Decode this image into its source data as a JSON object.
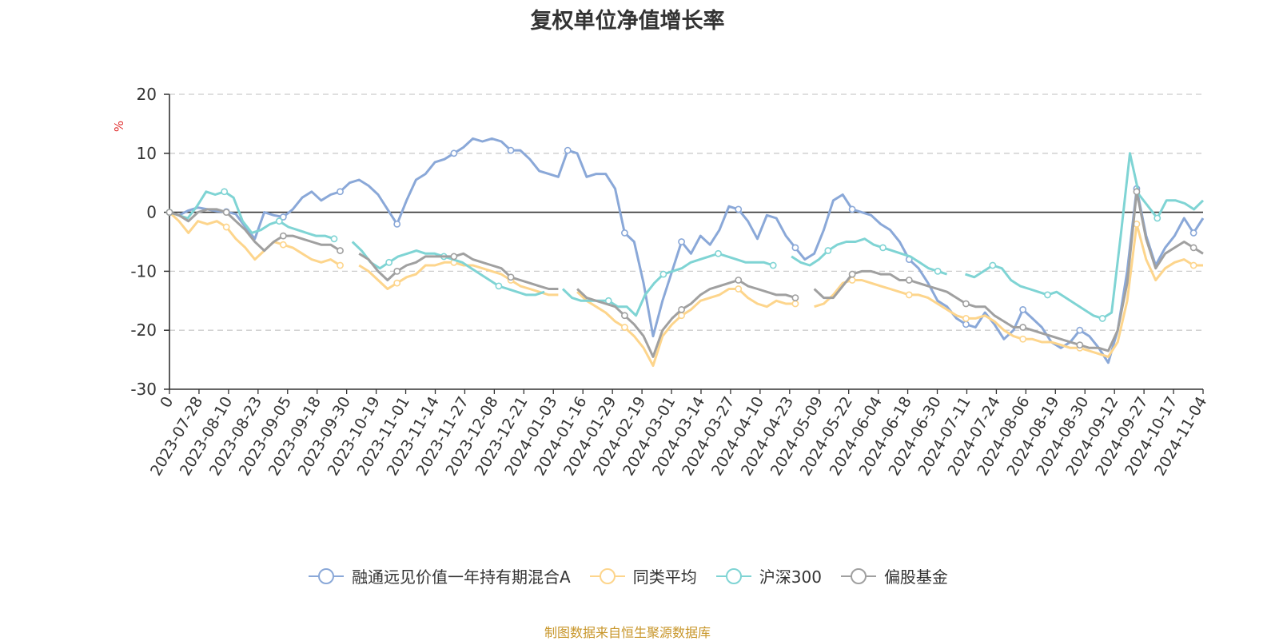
{
  "chart_data": {
    "type": "line",
    "title": "复权单位净值增长率",
    "ylabel": "%",
    "ylim": [
      -30,
      20
    ],
    "yticks": [
      20,
      10,
      0,
      -10,
      -20,
      -30
    ],
    "x_tick_labels": [
      "0",
      "2023-07-28",
      "2023-08-10",
      "2023-08-23",
      "2023-09-05",
      "2023-09-18",
      "2023-09-30",
      "2023-10-19",
      "2023-11-01",
      "2023-11-14",
      "2023-11-27",
      "2023-12-08",
      "2023-12-21",
      "2024-01-03",
      "2024-01-16",
      "2024-01-29",
      "2024-02-19",
      "2024-03-01",
      "2024-03-14",
      "2024-03-27",
      "2024-04-10",
      "2024-04-23",
      "2024-05-09",
      "2024-05-22",
      "2024-06-04",
      "2024-06-18",
      "2024-06-30",
      "2024-07-11",
      "2024-07-24",
      "2024-08-06",
      "2024-08-19",
      "2024-08-30",
      "2024-09-12",
      "2024-09-27",
      "2024-10-17",
      "2024-11-04"
    ],
    "grid": true,
    "legend_position": "bottom",
    "series": [
      {
        "name": "融通远见价值一年持有期混合A",
        "color": "#8aa8d8",
        "values": [
          0,
          -0.5,
          0.3,
          0.8,
          0.5,
          0.2,
          0.1,
          -0.3,
          -2.5,
          -4.5,
          0,
          -0.5,
          -0.8,
          0.5,
          2.5,
          3.5,
          2.0,
          3.0,
          3.5,
          5.0,
          5.5,
          4.5,
          3.0,
          0.5,
          -2.0,
          2.0,
          5.5,
          6.5,
          8.5,
          9.0,
          10.0,
          11.0,
          12.5,
          12.0,
          12.5,
          12.0,
          10.5,
          10.5,
          9.0,
          7.0,
          6.5,
          6.0,
          10.5,
          10.0,
          6.0,
          6.5,
          6.5,
          4.0,
          -3.5,
          -5.0,
          -12.0,
          -21.0,
          -15.0,
          -10.0,
          -5.0,
          -7.0,
          -4.0,
          -5.5,
          -3.0,
          1.0,
          0.5,
          -1.5,
          -4.5,
          -0.5,
          -1.0,
          -4.0,
          -6.0,
          -8.0,
          -7.0,
          -3.0,
          2.0,
          3.0,
          0.5,
          0,
          -0.5,
          -2.0,
          -3.0,
          -5.0,
          -8.0,
          -9.5,
          -12.0,
          -15.0,
          -16.0,
          -18.0,
          -19.0,
          -19.5,
          -17.0,
          -19.0,
          -21.5,
          -20.0,
          -16.5,
          -18.0,
          -19.5,
          -22.0,
          -23.0,
          -22.0,
          -20.0,
          -21.0,
          -23.0,
          -25.5,
          -20.0,
          -10.0,
          4.0,
          -4.0,
          -9.0,
          -6.0,
          -4.0,
          -1.0,
          -3.5,
          -1.0
        ]
      },
      {
        "name": "同类平均",
        "color": "#fdd58c",
        "values": [
          0,
          -1.5,
          -3.5,
          -1.5,
          -2.0,
          -1.5,
          -2.5,
          -4.5,
          -6.0,
          -8.0,
          -6.5,
          -5.0,
          -5.5,
          -6.0,
          -7.0,
          -8.0,
          -8.5,
          -8.0,
          -9.0,
          null,
          -9.0,
          -10.0,
          -11.5,
          -13.0,
          -12.0,
          -11.0,
          -10.5,
          -9.0,
          -9.0,
          -8.5,
          -8.5,
          -9.0,
          -9.0,
          -9.5,
          -10.0,
          -10.5,
          -11.5,
          -12.5,
          -13.0,
          -13.5,
          -14.0,
          -14.0,
          null,
          -13.5,
          -15.0,
          -16.0,
          -17.0,
          -18.5,
          -19.5,
          -21.0,
          -23.0,
          -26.0,
          -21.0,
          -19.0,
          -17.5,
          -16.5,
          -15.0,
          -14.5,
          -14.0,
          -13.0,
          -13.0,
          -14.5,
          -15.5,
          -16.0,
          -15.0,
          -15.5,
          -15.5,
          null,
          -16.0,
          -15.5,
          -14.0,
          -12.0,
          -11.5,
          -11.5,
          -12.0,
          -12.5,
          -13.0,
          -13.5,
          -14.0,
          -14.0,
          -14.5,
          -15.5,
          -16.5,
          -17.5,
          -18.0,
          -18.0,
          -17.5,
          -18.5,
          -20.0,
          -21.0,
          -21.5,
          -21.5,
          -22.0,
          -22.0,
          -22.5,
          -23.0,
          -23.0,
          -23.5,
          -24.0,
          -24.5,
          -22.0,
          -15.0,
          -2.0,
          -8.0,
          -11.5,
          -9.5,
          -8.5,
          -8.0,
          -9.0,
          -9.0
        ]
      },
      {
        "name": "沪深300",
        "color": "#7fd4d4",
        "values": [
          0,
          -0.5,
          -1.0,
          1.0,
          3.5,
          3.0,
          3.5,
          2.5,
          -1.5,
          -3.5,
          -3.0,
          -2.0,
          -1.5,
          -2.5,
          -3.0,
          -3.5,
          -4.0,
          -4.0,
          -4.5,
          null,
          -5.0,
          -6.5,
          -8.5,
          -9.5,
          -8.5,
          -7.5,
          -7.0,
          -6.5,
          -7.0,
          -7.0,
          -7.5,
          -8.0,
          -8.5,
          -9.5,
          -10.5,
          -11.5,
          -12.5,
          -13.0,
          -13.5,
          -14.0,
          -14.0,
          -13.5,
          null,
          -13.0,
          -14.5,
          -15.0,
          -15.0,
          -15.0,
          -15.0,
          -16.0,
          -16.0,
          -17.5,
          -14.0,
          -12.0,
          -10.5,
          -10.0,
          -9.5,
          -8.5,
          -8.0,
          -7.5,
          -7.0,
          -7.5,
          -8.0,
          -8.5,
          -8.5,
          -8.5,
          -9.0,
          null,
          -7.5,
          -8.5,
          -9.0,
          -8.0,
          -6.5,
          -5.5,
          -5.0,
          -5.0,
          -4.5,
          -5.5,
          -6.0,
          -6.5,
          -7.0,
          -7.5,
          -8.5,
          -9.5,
          -10.0,
          -10.5,
          null,
          -10.5,
          -11.0,
          -10.0,
          -9.0,
          -9.5,
          -11.5,
          -12.5,
          -13.0,
          -13.5,
          -14.0,
          -13.5,
          -14.5,
          -15.5,
          -16.5,
          -17.5,
          -18.0,
          -17.0,
          -4.0,
          10.0,
          3.0,
          1.0,
          -1.0,
          2.0,
          2.0,
          1.5,
          0.5,
          2.0
        ]
      },
      {
        "name": "偏股基金",
        "color": "#a0a0a0",
        "values": [
          0,
          -0.5,
          -1.5,
          0,
          0.5,
          0.5,
          0,
          -1.5,
          -3.0,
          -5.0,
          -6.5,
          -5.0,
          -4.0,
          -4.0,
          -4.5,
          -5.0,
          -5.5,
          -5.5,
          -6.5,
          null,
          -7.0,
          -8.0,
          -10.0,
          -11.5,
          -10.0,
          -9.0,
          -8.5,
          -7.5,
          -7.5,
          -7.5,
          -7.5,
          -7.0,
          -8.0,
          -8.5,
          -9.0,
          -9.5,
          -11.0,
          -11.5,
          -12.0,
          -12.5,
          -13.0,
          -13.0,
          null,
          -13.0,
          -14.5,
          -15.0,
          -15.5,
          -16.0,
          -17.5,
          -19.0,
          -21.0,
          -24.5,
          -20.0,
          -18.0,
          -16.5,
          -15.5,
          -14.0,
          -13.0,
          -12.5,
          -12.0,
          -11.5,
          -12.5,
          -13.0,
          -13.5,
          -14.0,
          -14.0,
          -14.5,
          null,
          -13.0,
          -14.5,
          -14.5,
          -12.5,
          -10.5,
          -10.0,
          -10.0,
          -10.5,
          -10.5,
          -11.5,
          -11.5,
          -12.0,
          -12.5,
          -13.0,
          -13.5,
          -14.5,
          -15.5,
          -16.0,
          -16.0,
          -17.5,
          -18.5,
          -19.5,
          -19.5,
          -20.0,
          -20.5,
          -21.0,
          -21.5,
          -22.0,
          -22.5,
          -23.0,
          -23.0,
          -23.5,
          -20.0,
          -12.0,
          3.5,
          -4.5,
          -9.5,
          -7.0,
          -6.0,
          -5.0,
          -6.0,
          -7.0
        ]
      }
    ]
  },
  "source_note": "制图数据来自恒生聚源数据库"
}
